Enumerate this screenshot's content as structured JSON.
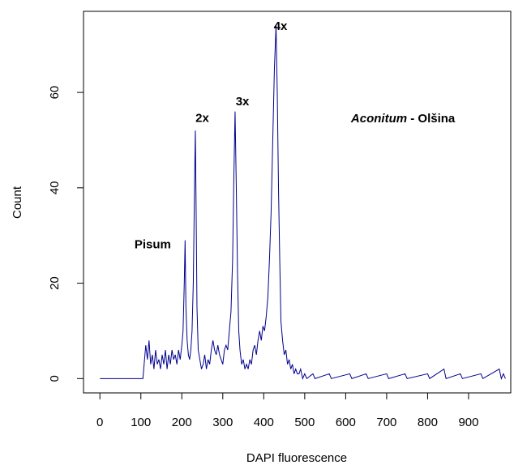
{
  "chart_data": {
    "type": "line",
    "x_label": "DAPI fluorescence",
    "y_label": "Count",
    "color": "#00008b",
    "xlim": [
      -40,
      1003
    ],
    "ylim": [
      -3,
      77
    ],
    "xticks": [
      0,
      100,
      200,
      300,
      400,
      500,
      600,
      700,
      800,
      900
    ],
    "yticks": [
      0,
      20,
      40,
      60
    ],
    "x": [
      0,
      105,
      108,
      112,
      116,
      120,
      124,
      128,
      132,
      136,
      140,
      144,
      148,
      152,
      156,
      160,
      164,
      168,
      172,
      176,
      180,
      184,
      188,
      192,
      196,
      200,
      203,
      206,
      208,
      210,
      213,
      216,
      219,
      222,
      225,
      228,
      231,
      233,
      235,
      237,
      240,
      244,
      248,
      252,
      256,
      260,
      264,
      268,
      272,
      276,
      280,
      284,
      288,
      292,
      296,
      300,
      304,
      308,
      312,
      316,
      320,
      324,
      327,
      330,
      333,
      336,
      339,
      342,
      346,
      350,
      354,
      358,
      362,
      366,
      370,
      374,
      378,
      382,
      386,
      390,
      394,
      398,
      402,
      406,
      410,
      414,
      418,
      422,
      426,
      430,
      433,
      436,
      439,
      442,
      446,
      450,
      454,
      458,
      462,
      466,
      470,
      474,
      478,
      482,
      486,
      490,
      495,
      500,
      505,
      520,
      525,
      560,
      565,
      610,
      615,
      650,
      655,
      700,
      705,
      745,
      750,
      800,
      805,
      840,
      845,
      880,
      885,
      930,
      935,
      975,
      980,
      985,
      990
    ],
    "values": [
      0,
      0,
      3,
      7,
      4,
      8,
      3,
      5,
      2,
      6,
      3,
      4,
      2,
      5,
      3,
      6,
      2,
      5,
      3,
      6,
      4,
      5,
      3,
      6,
      4,
      7,
      10,
      20,
      29,
      15,
      8,
      5,
      4,
      6,
      10,
      20,
      40,
      52,
      35,
      15,
      6,
      4,
      2,
      3,
      5,
      2,
      4,
      3,
      6,
      8,
      6,
      5,
      7,
      5,
      4,
      3,
      6,
      7,
      6,
      10,
      14,
      25,
      42,
      56,
      40,
      22,
      10,
      6,
      3,
      4,
      2,
      3,
      2,
      4,
      3,
      6,
      7,
      5,
      8,
      10,
      8,
      11,
      10,
      13,
      17,
      25,
      35,
      50,
      65,
      74,
      60,
      40,
      25,
      12,
      8,
      5,
      6,
      3,
      4,
      2,
      3,
      1,
      2,
      1,
      1,
      2,
      0,
      1,
      0,
      1,
      0,
      1,
      0,
      1,
      0,
      1,
      0,
      1,
      0,
      1,
      0,
      1,
      0,
      2,
      0,
      1,
      0,
      1,
      0,
      2,
      0,
      1,
      0
    ],
    "annotations": [
      {
        "parts": [
          {
            "text": "Pisum",
            "style": "normal"
          }
        ],
        "x": 129,
        "y": 28
      },
      {
        "parts": [
          {
            "text": "2x",
            "style": "normal"
          }
        ],
        "x": 250,
        "y": 54.5
      },
      {
        "parts": [
          {
            "text": "3x",
            "style": "normal"
          }
        ],
        "x": 348,
        "y": 58
      },
      {
        "parts": [
          {
            "text": "4x",
            "style": "normal"
          }
        ],
        "x": 441,
        "y": 73.8
      },
      {
        "parts": [
          {
            "text": "Aconitum",
            "style": "italic"
          },
          {
            "text": " - Olšina",
            "style": "normal"
          }
        ],
        "x": 740,
        "y": 54.4
      }
    ]
  }
}
